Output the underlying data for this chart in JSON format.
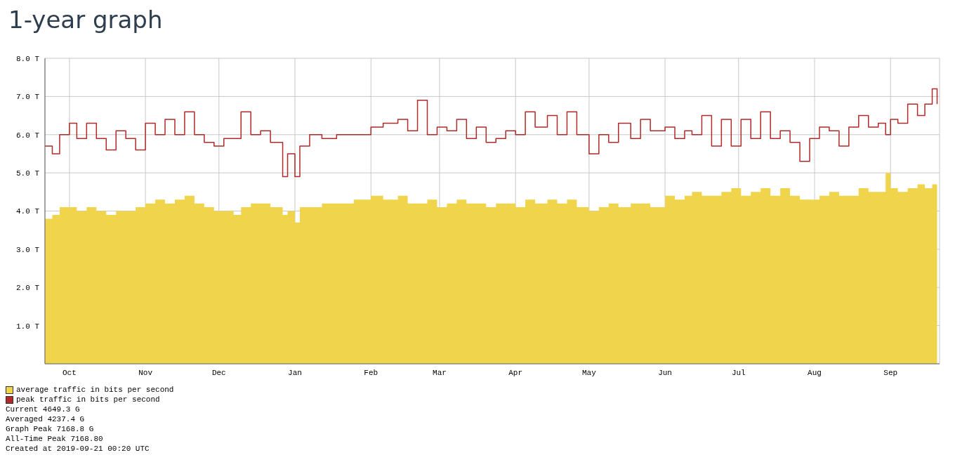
{
  "chart_data": {
    "type": "area",
    "title": "1-year graph",
    "x": [
      "2018-09-21",
      "2018-09-24",
      "2018-09-27",
      "2018-10-01",
      "2018-10-04",
      "2018-10-08",
      "2018-10-12",
      "2018-10-16",
      "2018-10-20",
      "2018-10-24",
      "2018-10-28",
      "2018-11-01",
      "2018-11-05",
      "2018-11-09",
      "2018-11-13",
      "2018-11-17",
      "2018-11-21",
      "2018-11-25",
      "2018-11-29",
      "2018-12-03",
      "2018-12-07",
      "2018-12-10",
      "2018-12-14",
      "2018-12-18",
      "2018-12-22",
      "2018-12-27",
      "2018-12-29",
      "2019-01-01",
      "2019-01-03",
      "2019-01-07",
      "2019-01-12",
      "2019-01-18",
      "2019-01-25",
      "2019-02-01",
      "2019-02-06",
      "2019-02-12",
      "2019-02-16",
      "2019-02-20",
      "2019-02-24",
      "2019-02-28",
      "2019-03-04",
      "2019-03-08",
      "2019-03-12",
      "2019-03-16",
      "2019-03-20",
      "2019-03-24",
      "2019-03-28",
      "2019-04-01",
      "2019-04-05",
      "2019-04-09",
      "2019-04-14",
      "2019-04-18",
      "2019-04-22",
      "2019-04-26",
      "2019-05-01",
      "2019-05-05",
      "2019-05-09",
      "2019-05-13",
      "2019-05-18",
      "2019-05-22",
      "2019-05-26",
      "2019-06-01",
      "2019-06-05",
      "2019-06-09",
      "2019-06-12",
      "2019-06-16",
      "2019-06-20",
      "2019-06-24",
      "2019-06-28",
      "2019-07-02",
      "2019-07-06",
      "2019-07-10",
      "2019-07-14",
      "2019-07-18",
      "2019-07-22",
      "2019-07-26",
      "2019-07-30",
      "2019-08-03",
      "2019-08-07",
      "2019-08-11",
      "2019-08-15",
      "2019-08-19",
      "2019-08-23",
      "2019-08-27",
      "2019-08-30",
      "2019-09-01",
      "2019-09-04",
      "2019-09-08",
      "2019-09-12",
      "2019-09-15",
      "2019-09-18",
      "2019-09-20"
    ],
    "series": [
      {
        "name": "average traffic in bits per second",
        "color": "#f0d54c",
        "values": [
          3.8,
          3.9,
          4.1,
          4.1,
          4.0,
          4.1,
          4.0,
          3.9,
          4.0,
          4.0,
          4.1,
          4.2,
          4.3,
          4.2,
          4.3,
          4.4,
          4.2,
          4.1,
          4.0,
          4.0,
          3.9,
          4.1,
          4.2,
          4.2,
          4.1,
          3.9,
          4.0,
          3.7,
          4.1,
          4.1,
          4.2,
          4.2,
          4.3,
          4.4,
          4.3,
          4.4,
          4.2,
          4.2,
          4.3,
          4.1,
          4.2,
          4.3,
          4.2,
          4.2,
          4.1,
          4.2,
          4.2,
          4.1,
          4.3,
          4.2,
          4.3,
          4.2,
          4.3,
          4.1,
          4.0,
          4.1,
          4.2,
          4.1,
          4.2,
          4.2,
          4.1,
          4.4,
          4.3,
          4.4,
          4.5,
          4.4,
          4.4,
          4.5,
          4.6,
          4.4,
          4.5,
          4.6,
          4.4,
          4.6,
          4.4,
          4.3,
          4.3,
          4.4,
          4.5,
          4.4,
          4.4,
          4.6,
          4.5,
          4.5,
          5.0,
          4.6,
          4.5,
          4.6,
          4.7,
          4.6,
          4.7,
          4.8
        ]
      },
      {
        "name": "peak traffic in bits per second",
        "type": "step",
        "color": "#b02a2a",
        "values": [
          5.7,
          5.5,
          6.0,
          6.3,
          5.9,
          6.3,
          5.9,
          5.6,
          6.1,
          5.9,
          5.6,
          6.3,
          6.0,
          6.4,
          6.0,
          6.6,
          6.0,
          5.8,
          5.7,
          5.9,
          5.9,
          6.6,
          6.0,
          6.1,
          5.8,
          4.9,
          5.5,
          4.9,
          5.7,
          6.0,
          5.9,
          6.0,
          6.0,
          6.2,
          6.3,
          6.4,
          6.1,
          6.9,
          6.0,
          6.2,
          6.1,
          6.4,
          5.9,
          6.2,
          5.8,
          5.9,
          6.1,
          6.0,
          6.6,
          6.2,
          6.5,
          6.0,
          6.6,
          6.0,
          5.5,
          6.0,
          5.8,
          6.3,
          5.9,
          6.4,
          6.1,
          6.2,
          5.9,
          6.1,
          6.0,
          6.5,
          5.7,
          6.4,
          5.7,
          6.4,
          5.9,
          6.6,
          5.9,
          6.1,
          5.8,
          5.3,
          5.9,
          6.2,
          6.1,
          5.7,
          6.2,
          6.5,
          6.2,
          6.3,
          6.0,
          6.4,
          6.3,
          6.8,
          6.5,
          6.8,
          7.2,
          6.8
        ]
      }
    ],
    "xlim": [
      "2018-09-21",
      "2019-09-21"
    ],
    "xticks": [
      {
        "value": "2018-10-01",
        "label": "Oct"
      },
      {
        "value": "2018-11-01",
        "label": "Nov"
      },
      {
        "value": "2018-12-01",
        "label": "Dec"
      },
      {
        "value": "2019-01-01",
        "label": "Jan"
      },
      {
        "value": "2019-02-01",
        "label": "Feb"
      },
      {
        "value": "2019-03-01",
        "label": "Mar"
      },
      {
        "value": "2019-04-01",
        "label": "Apr"
      },
      {
        "value": "2019-05-01",
        "label": "May"
      },
      {
        "value": "2019-06-01",
        "label": "Jun"
      },
      {
        "value": "2019-07-01",
        "label": "Jul"
      },
      {
        "value": "2019-08-01",
        "label": "Aug"
      },
      {
        "value": "2019-09-01",
        "label": "Sep"
      }
    ],
    "ylim": [
      0,
      8
    ],
    "yticks": [
      {
        "value": 0,
        "label": null
      },
      {
        "value": 1,
        "label": "1.0 T"
      },
      {
        "value": 2,
        "label": "2.0 T"
      },
      {
        "value": 3,
        "label": "3.0 T"
      },
      {
        "value": 4,
        "label": "4.0 T"
      },
      {
        "value": 5,
        "label": "5.0 T"
      },
      {
        "value": 6,
        "label": "6.0 T"
      },
      {
        "value": 7,
        "label": "7.0 T"
      },
      {
        "value": 8,
        "label": "8.0 T"
      }
    ],
    "grid": true,
    "legend": "bottom",
    "annotations": [
      "Current 4649.3 G",
      "Averaged 4237.4 G",
      "Graph Peak 7168.8 G",
      "All-Time Peak 7168.80",
      "Created at 2019-09-21 00:20 UTC"
    ]
  }
}
